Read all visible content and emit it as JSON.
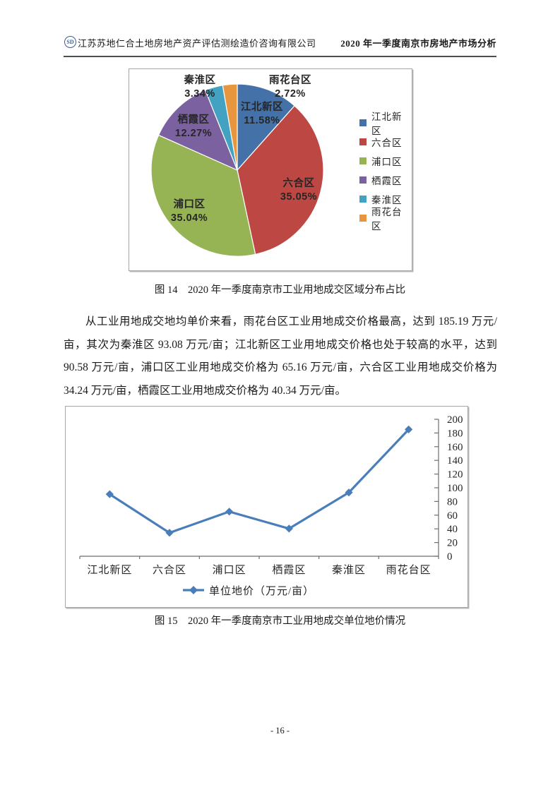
{
  "header": {
    "company": "江苏苏地仁合土地房地产资产评估测绘造价咨询有限公司",
    "report_title": "2020 年一季度南京市房地产市场分析",
    "logo_monogram": "SD"
  },
  "figure14": {
    "caption": "图 14　2020 年一季度南京市工业用地成交区域分布占比"
  },
  "paragraph": "从工业用地成交地均单价来看，雨花台区工业用地成交价格最高，达到 185.19 万元/亩，其次为秦淮区 93.08 万元/亩；江北新区工业用地成交价格也处于较高的水平，达到 90.58 万元/亩，浦口区工业用地成交价格为 65.16 万元/亩，六合区工业用地成交价格为 34.24 万元/亩，栖霞区工业用地成交价格为 40.34 万元/亩。",
  "figure15": {
    "caption": "图 15　2020 年一季度南京市工业用地成交单位地价情况"
  },
  "page_number": "- 16 -",
  "chart_data": [
    {
      "type": "pie",
      "title": "2020年一季度南京市工业用地成交区域分布占比",
      "categories": [
        "江北新区",
        "六合区",
        "浦口区",
        "栖霞区",
        "秦淮区",
        "雨花台区"
      ],
      "values": [
        11.58,
        35.05,
        35.04,
        12.27,
        3.34,
        2.72
      ],
      "unit": "%",
      "colors": [
        "#4472a8",
        "#bc4743",
        "#97b455",
        "#7b61a0",
        "#43a2c1",
        "#e8963e"
      ],
      "legend_position": "right",
      "start_angle_deg": 0,
      "direction": "clockwise"
    },
    {
      "type": "line",
      "title": "2020年一季度南京市工业用地成交单位地价情况",
      "categories": [
        "江北新区",
        "六合区",
        "浦口区",
        "栖霞区",
        "秦淮区",
        "雨花台区"
      ],
      "series": [
        {
          "name": "单位地价（万元/亩）",
          "values": [
            90.58,
            34.24,
            65.16,
            40.34,
            93.08,
            185.19
          ]
        }
      ],
      "ylim": [
        0,
        200
      ],
      "ytick_step": 20,
      "y_axis_side": "right",
      "grid": false,
      "legend_position": "bottom",
      "line_color": "#4a7ebb",
      "marker": "diamond",
      "axis_color": "#6e6e6e"
    }
  ]
}
